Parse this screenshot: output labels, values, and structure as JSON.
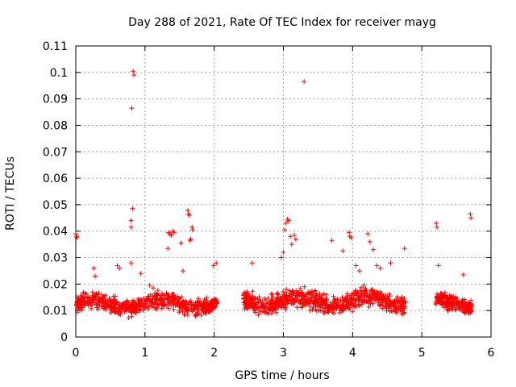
{
  "chart_data": {
    "type": "scatter",
    "title": "Day 288 of 2021, Rate Of TEC Index for receiver mayg",
    "xlabel": "GPS time / hours",
    "ylabel": "ROTI / TECUs",
    "xlim": [
      0,
      6
    ],
    "ylim": [
      0,
      0.11
    ],
    "x_ticks": [
      "0",
      "1",
      "2",
      "3",
      "4",
      "5",
      "6"
    ],
    "y_ticks": [
      "0",
      "0.01",
      "0.02",
      "0.03",
      "0.04",
      "0.05",
      "0.06",
      "0.07",
      "0.08",
      "0.09",
      "0.1",
      "0.11"
    ],
    "grid": true,
    "marker": "+",
    "colors": {
      "series": "#ff0000",
      "grid": "#a0a0a0",
      "axis": "#000000"
    },
    "series": [
      {
        "name": "ROTI",
        "dense_segments": [
          {
            "x_start": 0.0,
            "x_end": 2.05,
            "baseline": 0.0125,
            "spread": 0.0045,
            "count": 650
          },
          {
            "x_start": 2.42,
            "x_end": 4.77,
            "baseline": 0.0135,
            "spread": 0.005,
            "count": 760
          },
          {
            "x_start": 5.2,
            "x_end": 5.72,
            "baseline": 0.0128,
            "spread": 0.0042,
            "count": 230
          }
        ],
        "points": [
          [
            0.0,
            0.039
          ],
          [
            0.01,
            0.038
          ],
          [
            0.02,
            0.0375
          ],
          [
            0.26,
            0.026
          ],
          [
            0.28,
            0.023
          ],
          [
            0.6,
            0.027
          ],
          [
            0.63,
            0.026
          ],
          [
            0.8,
            0.028
          ],
          [
            0.8,
            0.044
          ],
          [
            0.8,
            0.0415
          ],
          [
            0.82,
            0.0485
          ],
          [
            0.81,
            0.0865
          ],
          [
            0.83,
            0.1005
          ],
          [
            0.84,
            0.099
          ],
          [
            0.94,
            0.024
          ],
          [
            1.07,
            0.0195
          ],
          [
            1.12,
            0.0185
          ],
          [
            1.34,
            0.0395
          ],
          [
            1.36,
            0.039
          ],
          [
            1.38,
            0.0385
          ],
          [
            1.4,
            0.04
          ],
          [
            1.42,
            0.0395
          ],
          [
            1.33,
            0.0335
          ],
          [
            1.52,
            0.0355
          ],
          [
            1.55,
            0.025
          ],
          [
            1.62,
            0.0478
          ],
          [
            1.63,
            0.0465
          ],
          [
            1.64,
            0.046
          ],
          [
            1.68,
            0.0415
          ],
          [
            1.69,
            0.0405
          ],
          [
            1.66,
            0.037
          ],
          [
            1.65,
            0.0365
          ],
          [
            1.99,
            0.027
          ],
          [
            2.03,
            0.028
          ],
          [
            2.55,
            0.028
          ],
          [
            2.97,
            0.03
          ],
          [
            3.0,
            0.032
          ],
          [
            3.02,
            0.0405
          ],
          [
            3.04,
            0.043
          ],
          [
            3.06,
            0.0445
          ],
          [
            3.08,
            0.044
          ],
          [
            3.1,
            0.038
          ],
          [
            3.12,
            0.035
          ],
          [
            3.16,
            0.0385
          ],
          [
            3.18,
            0.037
          ],
          [
            3.3,
            0.0965
          ],
          [
            3.7,
            0.0365
          ],
          [
            3.86,
            0.0325
          ],
          [
            3.95,
            0.0395
          ],
          [
            3.96,
            0.038
          ],
          [
            3.98,
            0.0375
          ],
          [
            4.05,
            0.027
          ],
          [
            4.1,
            0.025
          ],
          [
            4.22,
            0.039
          ],
          [
            4.25,
            0.036
          ],
          [
            4.3,
            0.033
          ],
          [
            4.35,
            0.027
          ],
          [
            4.4,
            0.026
          ],
          [
            4.55,
            0.028
          ],
          [
            4.75,
            0.0335
          ],
          [
            5.21,
            0.043
          ],
          [
            5.22,
            0.0415
          ],
          [
            5.24,
            0.027
          ],
          [
            5.6,
            0.0235
          ],
          [
            5.7,
            0.0465
          ],
          [
            5.71,
            0.045
          ]
        ]
      }
    ]
  }
}
